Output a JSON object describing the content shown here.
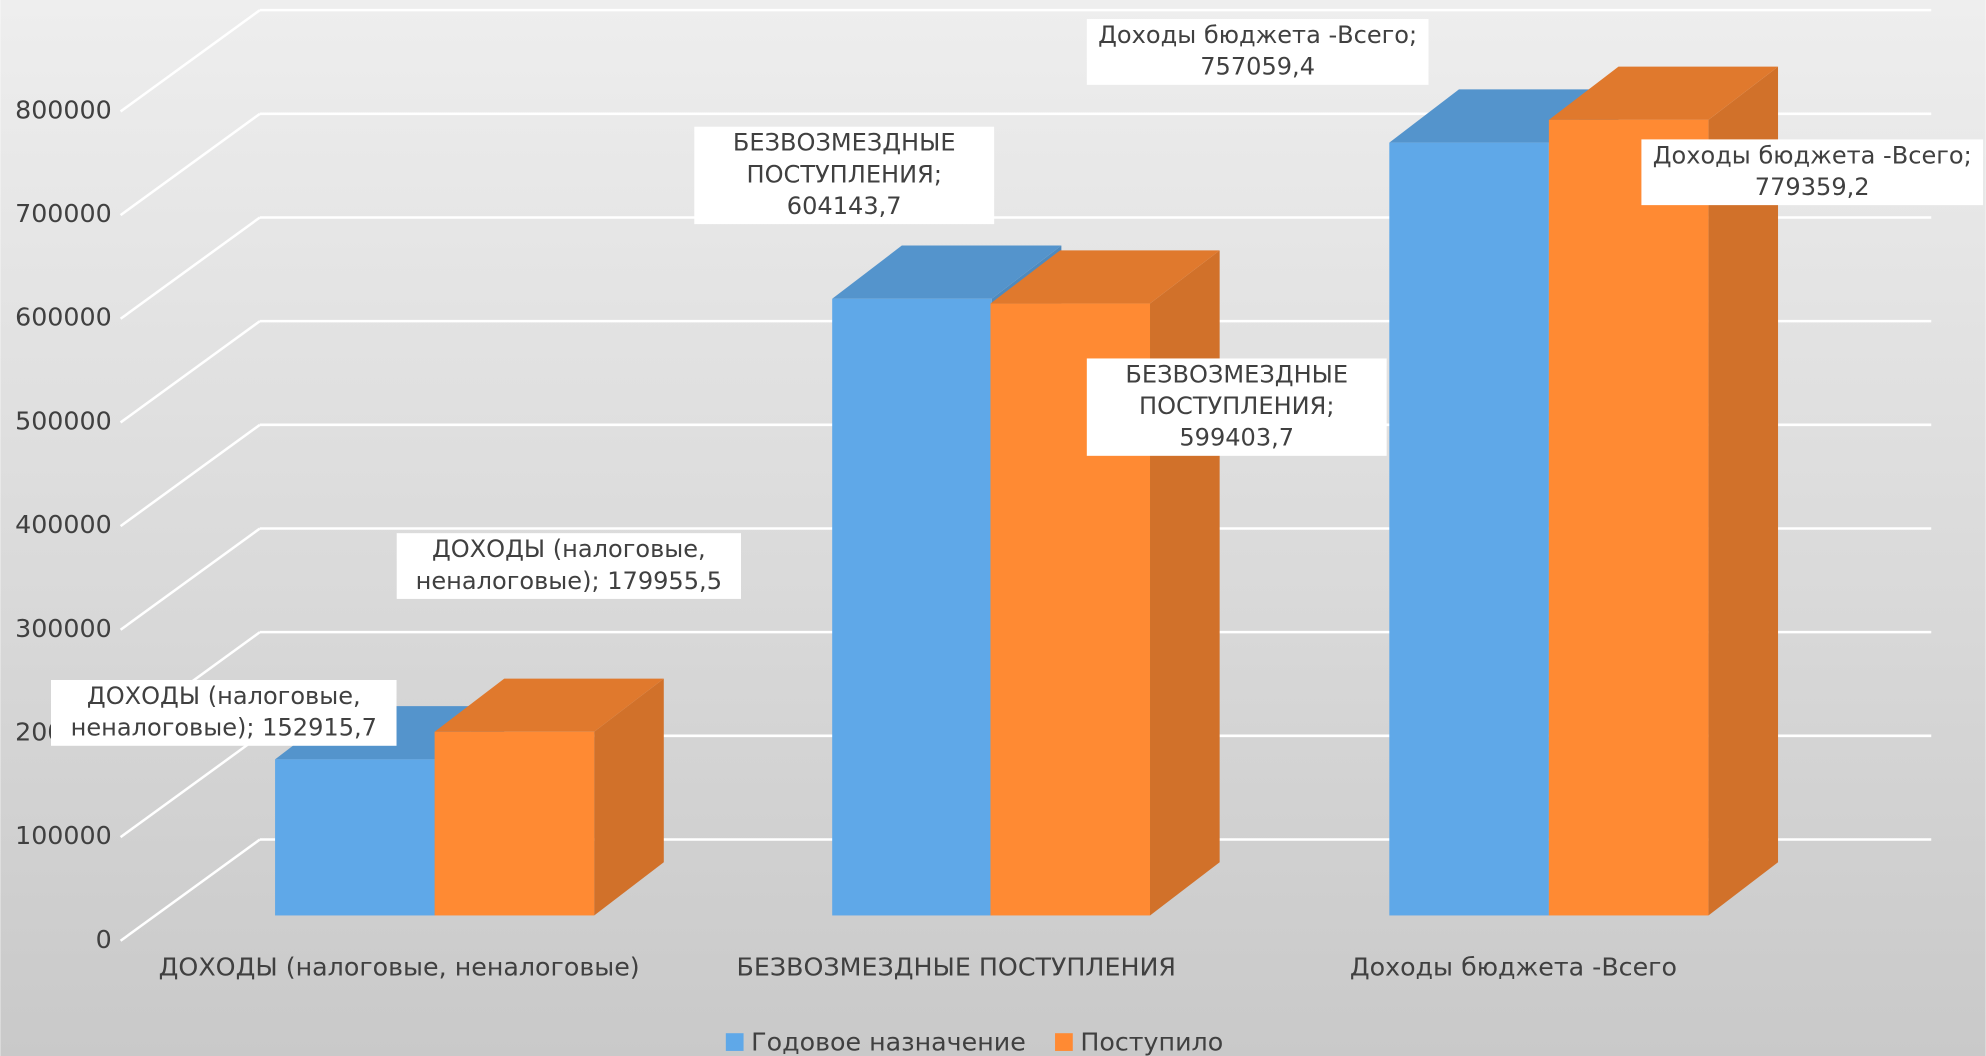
{
  "chart_data": {
    "type": "bar3d",
    "categories": [
      "ДОХОДЫ (налоговые, неналоговые)",
      "БЕЗВОЗМЕЗДНЫЕ ПОСТУПЛЕНИЯ",
      "Доходы бюджета -Всего"
    ],
    "series": [
      {
        "name": "Годовое назначение",
        "color": "#5fa8e8",
        "values": [
          152915.7,
          604143.7,
          757059.4
        ],
        "value_labels": [
          "ДОХОДЫ (налоговые, неналоговые); 152915,7",
          "БЕЗВОЗМЕЗДНЫЕ ПОСТУПЛЕНИЯ; 604143,7",
          "Доходы бюджета -Всего; 757059,4"
        ]
      },
      {
        "name": "Поступило",
        "color": "#ff8a33",
        "values": [
          179955.5,
          599403.7,
          779359.2
        ],
        "value_labels": [
          "ДОХОДЫ (налоговые, неналоговые); 179955,5",
          "БЕЗВОЗМЕЗДНЫЕ ПОСТУПЛЕНИЯ; 599403,7",
          "Доходы бюджета -Всего; 779359,2"
        ]
      }
    ],
    "ylim": [
      0,
      800000
    ],
    "yticks": [
      0,
      100000,
      200000,
      300000,
      400000,
      500000,
      600000,
      700000,
      800000
    ],
    "grid": true,
    "legend": "bottom"
  }
}
